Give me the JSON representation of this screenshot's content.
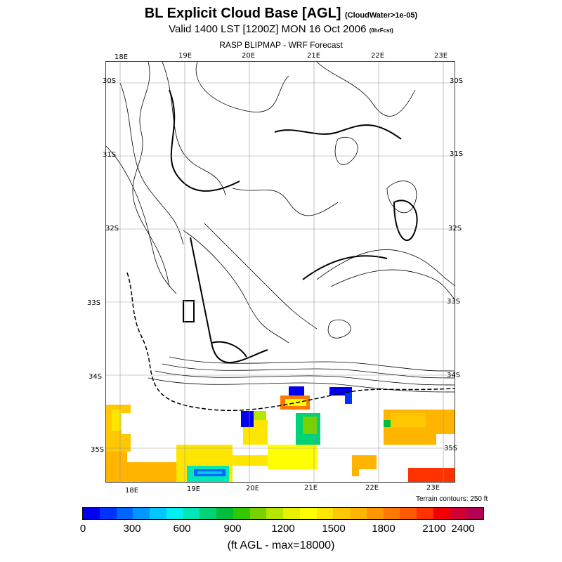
{
  "title": {
    "main": "BL Explicit Cloud Base [AGL]",
    "main_suffix": "(CloudWater>1e-05)",
    "valid": "Valid 1400 LST [1200Z] MON 16 Oct 2006",
    "valid_suffix": "(0hrFcst)",
    "product": "RASP BLIPMAP - WRF Forecast"
  },
  "map": {
    "top_lon_labels": [
      "18E",
      "19E",
      "20E",
      "21E",
      "22E",
      "23E"
    ],
    "bottom_lon_labels": [
      "18E",
      "19E",
      "20E",
      "21E",
      "22E",
      "23E"
    ],
    "left_lat_labels": [
      "30S",
      "31S",
      "32S",
      "33S",
      "34S",
      "35S"
    ],
    "right_lat_labels": [
      "30S",
      "31S",
      "32S",
      "33S",
      "34S",
      "35S"
    ]
  },
  "terrain_note": "Terrain contours: 250 ft",
  "colorbar": {
    "colors": [
      "#0000f0",
      "#0032ff",
      "#0064ff",
      "#0096ff",
      "#00c8ff",
      "#00f0f0",
      "#00e6b4",
      "#00d278",
      "#00be3c",
      "#32c800",
      "#78d200",
      "#b4e600",
      "#e6f000",
      "#ffff00",
      "#ffe600",
      "#ffc800",
      "#ffb400",
      "#ff9600",
      "#ff7800",
      "#ff5a00",
      "#ff3200",
      "#f00000",
      "#d20032",
      "#b40050"
    ],
    "ticks": [
      "0",
      "300",
      "600",
      "900",
      "1200",
      "1500",
      "1800",
      "2100",
      "2400"
    ],
    "units": "(ft AGL - max=18000)"
  }
}
